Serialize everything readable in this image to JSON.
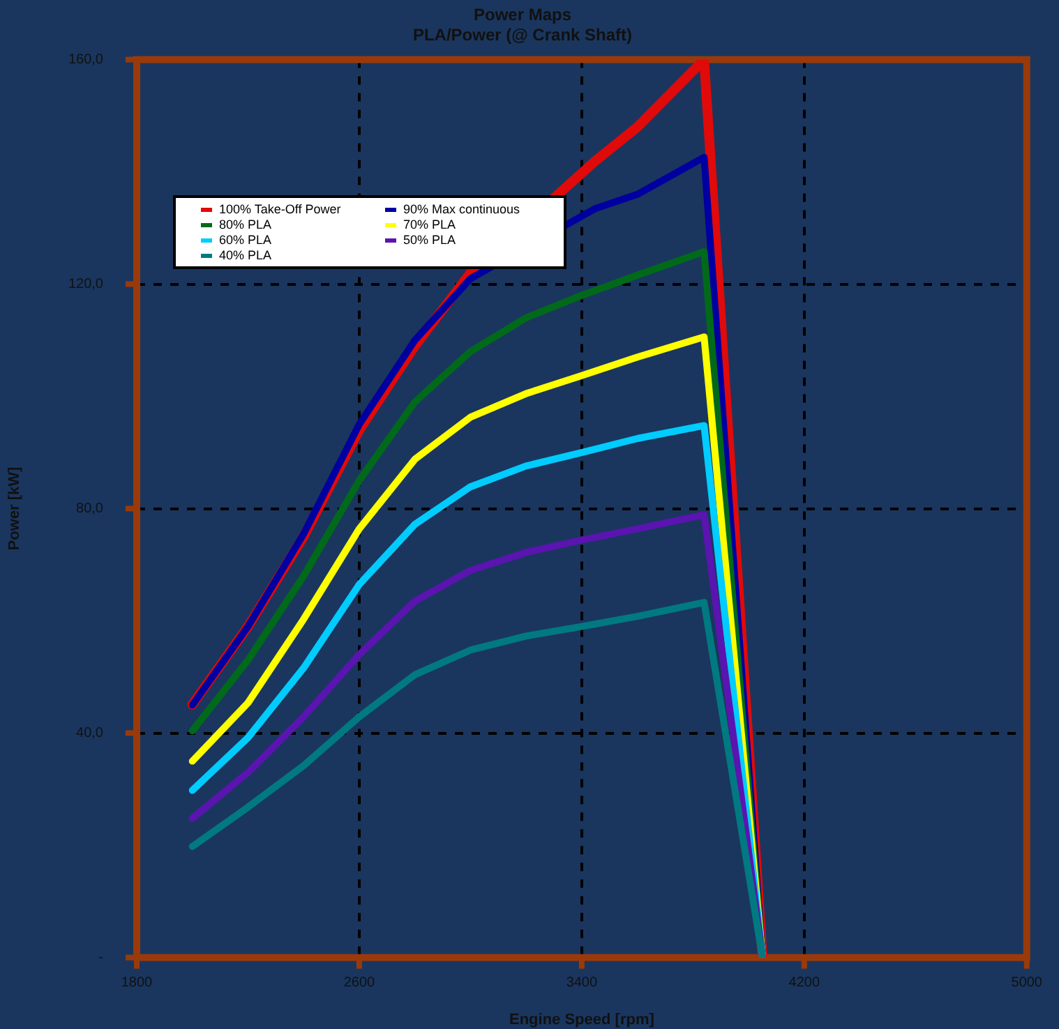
{
  "chart_data": {
    "type": "line",
    "title": "Power Maps",
    "subtitle": "PLA/Power (@ Crank Shaft)",
    "xlabel": "Engine Speed [rpm]",
    "ylabel": "Power [kW]",
    "x": [
      2000,
      2200,
      2400,
      2600,
      2800,
      3000,
      3200,
      3400,
      3600,
      3840,
      4050
    ],
    "xlim": [
      1800,
      5000
    ],
    "xticks": [
      1800,
      2600,
      3400,
      4200,
      5000
    ],
    "ylim": [
      0,
      160
    ],
    "yticks": [
      {
        "value": 0,
        "label": "-"
      },
      {
        "value": 40,
        "label": "40,0"
      },
      {
        "value": 80,
        "label": "80,0"
      },
      {
        "value": 120,
        "label": "120,0"
      },
      {
        "value": 160,
        "label": "160,0"
      }
    ],
    "grid": true,
    "legend": "top left",
    "marker": "none",
    "line_style": "solid",
    "series": [
      {
        "name": "100% Take-Off Power",
        "color": "#e00a0a",
        "x": [
          2000,
          2200,
          2400,
          2600,
          2800,
          3000,
          3450,
          3600,
          3840,
          4050
        ],
        "values": [
          45.1,
          59,
          75,
          94,
          109,
          122,
          142,
          148,
          160,
          0
        ]
      },
      {
        "name": "90% Max continuous",
        "color": "#0000a0",
        "x": [
          2000,
          2200,
          2400,
          2600,
          2800,
          3000,
          3450,
          3600,
          3840,
          4050
        ],
        "values": [
          45,
          59,
          75.5,
          95,
          110,
          121,
          133.5,
          136,
          142.6,
          0
        ]
      },
      {
        "name": "80% PLA",
        "color": "#006a1a",
        "values": [
          40.4,
          53,
          68,
          85,
          99,
          108,
          114,
          118,
          121.6,
          125.8,
          0
        ]
      },
      {
        "name": "70% PLA",
        "color": "#ffff00",
        "values": [
          35,
          45.4,
          60.3,
          76.4,
          88.8,
          96.3,
          100.5,
          103.7,
          107,
          110.6,
          0
        ]
      },
      {
        "name": "60% PLA",
        "color": "#00ccff",
        "values": [
          29.8,
          39.2,
          51.6,
          66.5,
          77.2,
          83.9,
          87.6,
          90,
          92.5,
          94.8,
          0
        ]
      },
      {
        "name": "50% PLA",
        "color": "#5a14b0",
        "values": [
          24.8,
          33,
          42.9,
          54,
          63.5,
          69,
          72.2,
          74.4,
          76.4,
          78.9,
          0
        ]
      },
      {
        "name": "40% PLA",
        "color": "#007a80",
        "values": [
          19.8,
          26.8,
          34.2,
          42.9,
          50.4,
          54.8,
          57.3,
          59,
          60.8,
          63.3,
          0
        ]
      }
    ]
  }
}
